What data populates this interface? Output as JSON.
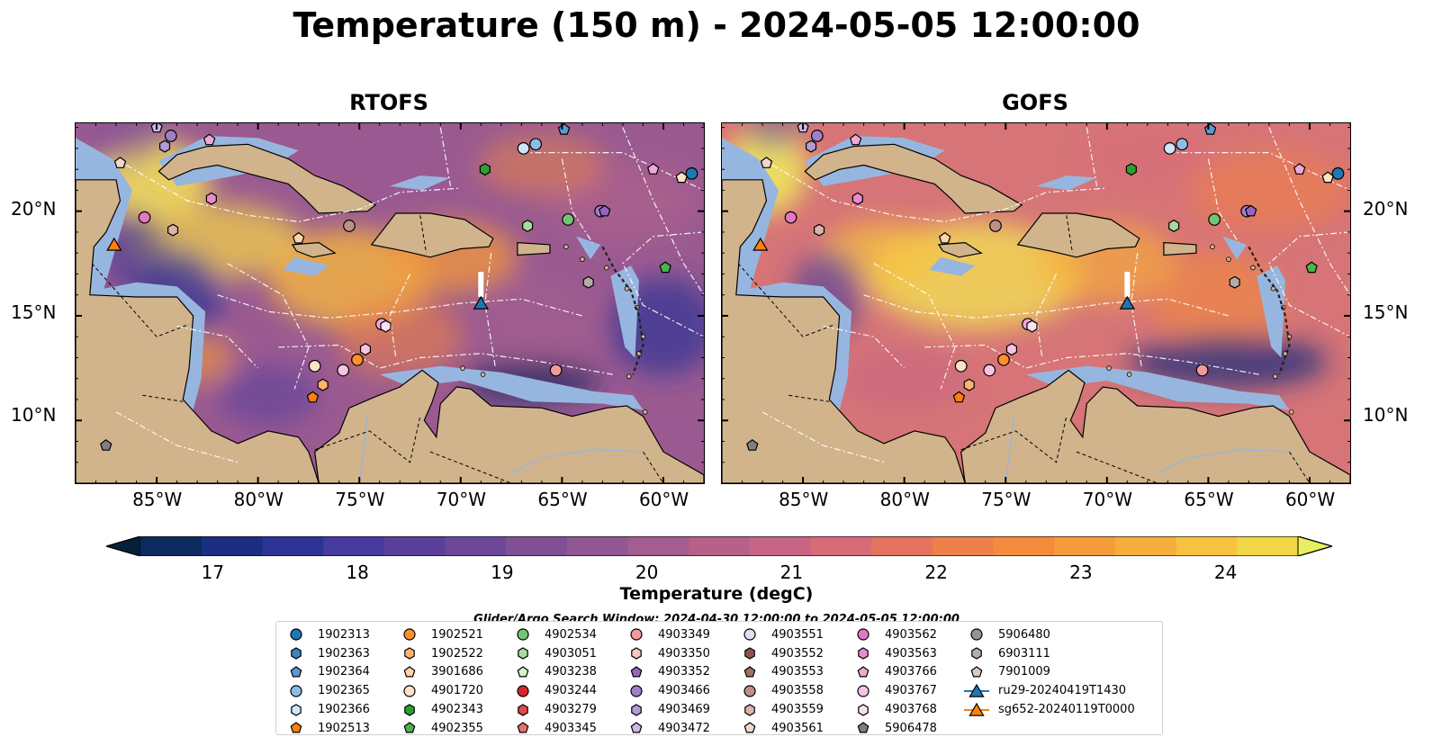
{
  "title": "Temperature (150 m) - 2024-05-05 12:00:00",
  "panels": [
    {
      "title": "RTOFS",
      "variant": "rtofs"
    },
    {
      "title": "GOFS",
      "variant": "gofs"
    }
  ],
  "lon_ticks": [
    "85°W",
    "80°W",
    "75°W",
    "70°W",
    "65°W",
    "60°W"
  ],
  "lat_ticks": [
    "20°N",
    "15°N",
    "10°N"
  ],
  "colorbar": {
    "label": "Temperature (degC)",
    "ticks": [
      "17",
      "18",
      "19",
      "20",
      "21",
      "22",
      "23",
      "24"
    ],
    "range": [
      16.5,
      24.5
    ],
    "step": 0.5,
    "colors": [
      "#06203a",
      "#0d2a5e",
      "#1c2e80",
      "#2d3396",
      "#463a9e",
      "#5b3f9c",
      "#6d4898",
      "#805096",
      "#915893",
      "#a35d8e",
      "#b56189",
      "#c86584",
      "#d86b78",
      "#e5745f",
      "#ee8049",
      "#f48c3d",
      "#f69b3a",
      "#f7ad3b",
      "#f6c23f",
      "#f2d646",
      "#e8f061"
    ],
    "extend": "both"
  },
  "search_window": "Glider/Argo Search Window: 2024-04-30 12:00:00 to 2024-05-05 12:00:00",
  "chart_data": {
    "type": "map",
    "variable": "Temperature (150 m)",
    "datetime": "2024-05-05 12:00:00",
    "units": "degC",
    "xlim": [
      -89,
      -58
    ],
    "ylim": [
      7,
      24.2
    ],
    "color_scale": [
      17,
      24
    ],
    "legend": [
      {
        "id": "1902313",
        "color": "#1f77b4",
        "marker": "circle"
      },
      {
        "id": "1902363",
        "color": "#3b84c0",
        "marker": "hexagon"
      },
      {
        "id": "1902364",
        "color": "#5b9bd5",
        "marker": "pentagon"
      },
      {
        "id": "1902365",
        "color": "#8fbce6",
        "marker": "circle"
      },
      {
        "id": "1902366",
        "color": "#cfe5fa",
        "marker": "hexagon"
      },
      {
        "id": "1902513",
        "color": "#ff7f0e",
        "marker": "pentagon"
      },
      {
        "id": "1902521",
        "color": "#ff8f2b",
        "marker": "circle"
      },
      {
        "id": "1902522",
        "color": "#ffb36b",
        "marker": "hexagon"
      },
      {
        "id": "3901686",
        "color": "#ffd3a8",
        "marker": "pentagon"
      },
      {
        "id": "4901720",
        "color": "#fde3c5",
        "marker": "circle"
      },
      {
        "id": "4902343",
        "color": "#2ca02c",
        "marker": "hexagon"
      },
      {
        "id": "4902355",
        "color": "#4cb34c",
        "marker": "pentagon"
      },
      {
        "id": "4902534",
        "color": "#74c476",
        "marker": "circle"
      },
      {
        "id": "4903051",
        "color": "#a6dba0",
        "marker": "hexagon"
      },
      {
        "id": "4903238",
        "color": "#d9f0c8",
        "marker": "pentagon"
      },
      {
        "id": "4903244",
        "color": "#d62728",
        "marker": "circle"
      },
      {
        "id": "4903279",
        "color": "#de4a4a",
        "marker": "hexagon"
      },
      {
        "id": "4903345",
        "color": "#e6716d",
        "marker": "pentagon"
      },
      {
        "id": "4903349",
        "color": "#f09c98",
        "marker": "circle"
      },
      {
        "id": "4903350",
        "color": "#f7c6c1",
        "marker": "hexagon"
      },
      {
        "id": "4903352",
        "color": "#9467bd",
        "marker": "pentagon"
      },
      {
        "id": "4903466",
        "color": "#a07fc8",
        "marker": "circle"
      },
      {
        "id": "4903469",
        "color": "#b59bd6",
        "marker": "hexagon"
      },
      {
        "id": "4903472",
        "color": "#cbb8e4",
        "marker": "pentagon"
      },
      {
        "id": "4903551",
        "color": "#e6dbf2",
        "marker": "circle"
      },
      {
        "id": "4903552",
        "color": "#8c564b",
        "marker": "hexagon"
      },
      {
        "id": "4903553",
        "color": "#a46e64",
        "marker": "pentagon"
      },
      {
        "id": "4903558",
        "color": "#bf8f86",
        "marker": "circle"
      },
      {
        "id": "4903559",
        "color": "#d9b4aa",
        "marker": "hexagon"
      },
      {
        "id": "4903561",
        "color": "#f0d6cd",
        "marker": "pentagon"
      },
      {
        "id": "4903562",
        "color": "#e377c2",
        "marker": "circle"
      },
      {
        "id": "4903563",
        "color": "#e88bcc",
        "marker": "hexagon"
      },
      {
        "id": "4903766",
        "color": "#f0a8d8",
        "marker": "pentagon"
      },
      {
        "id": "4903767",
        "color": "#f5c4e4",
        "marker": "circle"
      },
      {
        "id": "4903768",
        "color": "#fbe0f1",
        "marker": "hexagon"
      },
      {
        "id": "5906478",
        "color": "#7f7f7f",
        "marker": "pentagon"
      },
      {
        "id": "5906480",
        "color": "#949494",
        "marker": "circle"
      },
      {
        "id": "6903111",
        "color": "#b5aca8",
        "marker": "hexagon"
      },
      {
        "id": "7901009",
        "color": "#e0c8c0",
        "marker": "pentagon"
      },
      {
        "id": "ru29-20240419T1430",
        "color": "#1f77b4",
        "marker": "triangle"
      },
      {
        "id": "sg652-20240119T0000",
        "color": "#ff7f0e",
        "marker": "triangle"
      }
    ],
    "markers": [
      {
        "lon": -85.0,
        "lat": 24.0,
        "color": "#cbb8e4",
        "marker": "pentagon"
      },
      {
        "lon": -84.3,
        "lat": 23.6,
        "color": "#a07fc8",
        "marker": "circle"
      },
      {
        "lon": -84.6,
        "lat": 23.1,
        "color": "#b59bd6",
        "marker": "hexagon"
      },
      {
        "lon": -82.4,
        "lat": 23.4,
        "color": "#f0a8d8",
        "marker": "pentagon"
      },
      {
        "lon": -86.8,
        "lat": 22.3,
        "color": "#f0d6cd",
        "marker": "pentagon"
      },
      {
        "lon": -82.3,
        "lat": 20.6,
        "color": "#e88bcc",
        "marker": "hexagon"
      },
      {
        "lon": -85.6,
        "lat": 19.7,
        "color": "#e377c2",
        "marker": "circle"
      },
      {
        "lon": -84.2,
        "lat": 19.1,
        "color": "#d9b4aa",
        "marker": "hexagon"
      },
      {
        "lon": -78.0,
        "lat": 18.7,
        "color": "#ffd3a8",
        "marker": "pentagon"
      },
      {
        "lon": -75.5,
        "lat": 19.3,
        "color": "#bf8f86",
        "marker": "circle"
      },
      {
        "lon": -66.9,
        "lat": 23.0,
        "color": "#cfe5fa",
        "marker": "circle"
      },
      {
        "lon": -66.3,
        "lat": 23.2,
        "color": "#8fbce6",
        "marker": "circle"
      },
      {
        "lon": -64.9,
        "lat": 23.9,
        "color": "#5b9bd5",
        "marker": "pentagon"
      },
      {
        "lon": -68.8,
        "lat": 22.0,
        "color": "#2ca02c",
        "marker": "hexagon"
      },
      {
        "lon": -58.6,
        "lat": 21.8,
        "color": "#1f77b4",
        "marker": "circle"
      },
      {
        "lon": -60.5,
        "lat": 22.0,
        "color": "#f0a8d8",
        "marker": "pentagon"
      },
      {
        "lon": -59.1,
        "lat": 21.6,
        "color": "#fde3c5",
        "marker": "pentagon"
      },
      {
        "lon": -66.7,
        "lat": 19.3,
        "color": "#a6dba0",
        "marker": "hexagon"
      },
      {
        "lon": -64.7,
        "lat": 19.6,
        "color": "#74c476",
        "marker": "circle"
      },
      {
        "lon": -63.1,
        "lat": 20.0,
        "color": "#a07fc8",
        "marker": "circle"
      },
      {
        "lon": -62.9,
        "lat": 20.0,
        "color": "#9467bd",
        "marker": "pentagon"
      },
      {
        "lon": -59.9,
        "lat": 17.3,
        "color": "#4cb34c",
        "marker": "pentagon"
      },
      {
        "lon": -63.7,
        "lat": 16.6,
        "color": "#b5aca8",
        "marker": "hexagon"
      },
      {
        "lon": -73.9,
        "lat": 14.6,
        "color": "#f0a8d8",
        "marker": "circle"
      },
      {
        "lon": -73.7,
        "lat": 14.5,
        "color": "#fbe0f1",
        "marker": "hexagon"
      },
      {
        "lon": -74.7,
        "lat": 13.4,
        "color": "#f5c4e4",
        "marker": "hexagon"
      },
      {
        "lon": -75.1,
        "lat": 12.9,
        "color": "#ff8f2b",
        "marker": "circle"
      },
      {
        "lon": -75.8,
        "lat": 12.4,
        "color": "#f5c4e4",
        "marker": "circle"
      },
      {
        "lon": -77.2,
        "lat": 12.6,
        "color": "#fde3c5",
        "marker": "circle"
      },
      {
        "lon": -76.8,
        "lat": 11.7,
        "color": "#ffb36b",
        "marker": "hexagon"
      },
      {
        "lon": -77.3,
        "lat": 11.1,
        "color": "#ff7f0e",
        "marker": "pentagon"
      },
      {
        "lon": -65.3,
        "lat": 12.4,
        "color": "#f09c98",
        "marker": "circle"
      },
      {
        "lon": -87.5,
        "lat": 8.8,
        "color": "#7f7f7f",
        "marker": "pentagon"
      },
      {
        "lon": -87.1,
        "lat": 18.4,
        "color": "#ff7f0e",
        "marker": "triangle",
        "track": "sg652-20240119T0000"
      },
      {
        "lon": -69.0,
        "lat": 15.6,
        "color": "#1f77b4",
        "marker": "triangle",
        "track": "ru29-20240419T1430"
      }
    ]
  }
}
